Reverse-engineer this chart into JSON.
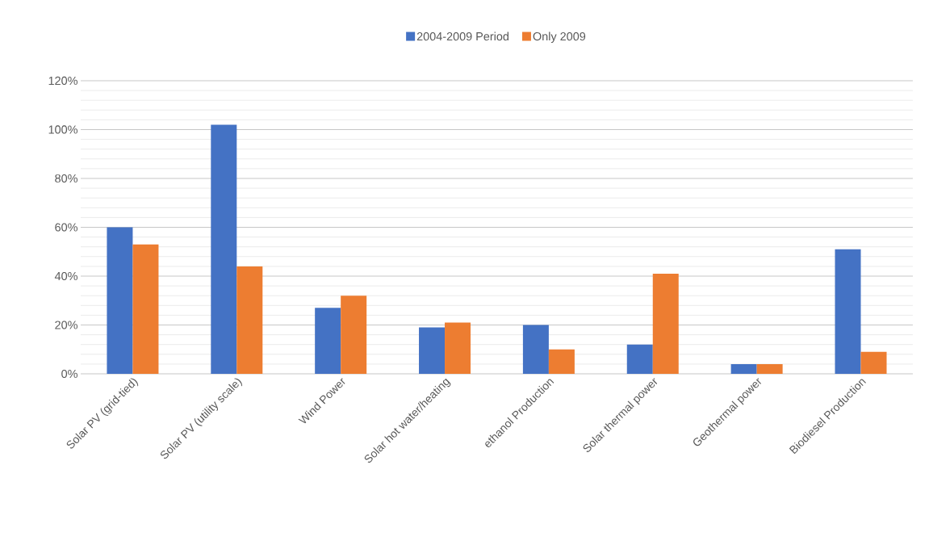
{
  "chart_data": {
    "type": "bar",
    "categories": [
      "Solar PV (grid-tied)",
      "Solar PV (utility scale)",
      "Wind Power",
      "Solar hot water/heating",
      "ethanol Production",
      "Solar thermal power",
      "Geothermal power",
      "Biodiesel Production"
    ],
    "series": [
      {
        "name": "2004-2009 Period",
        "color": "#4472c4",
        "values": [
          60,
          102,
          27,
          19,
          20,
          12,
          4,
          51
        ]
      },
      {
        "name": "Only 2009",
        "color": "#ed7d31",
        "values": [
          53,
          44,
          32,
          21,
          10,
          41,
          4,
          9
        ]
      }
    ],
    "ylim": [
      0,
      120
    ],
    "yticks": [
      {
        "value": 0,
        "label": "0%"
      },
      {
        "value": 20,
        "label": "20%"
      },
      {
        "value": 40,
        "label": "40%"
      },
      {
        "value": 60,
        "label": "60%"
      },
      {
        "value": 80,
        "label": "80%"
      },
      {
        "value": 100,
        "label": "100%"
      },
      {
        "value": 120,
        "label": "120%"
      }
    ],
    "grid": "y",
    "legend": "top"
  }
}
